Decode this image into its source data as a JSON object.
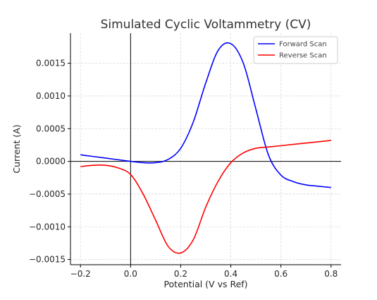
{
  "chart_data": {
    "type": "line",
    "title": "Simulated Cyclic Voltammetry (CV)",
    "xlabel": "Potential (V vs Ref)",
    "ylabel": "Current (A)",
    "xlim": [
      -0.24,
      0.84
    ],
    "ylim": [
      -0.00158,
      0.00196
    ],
    "xticks": [
      -0.2,
      0.0,
      0.2,
      0.4,
      0.6,
      0.8
    ],
    "xtick_labels": [
      "−0.2",
      "0.0",
      "0.2",
      "0.4",
      "0.6",
      "0.8"
    ],
    "yticks": [
      -0.0015,
      -0.001,
      -0.0005,
      0.0,
      0.0005,
      0.001,
      0.0015
    ],
    "ytick_labels": [
      "−0.0015",
      "−0.0010",
      "−0.0005",
      "0.0000",
      "0.0005",
      "0.0010",
      "0.0015"
    ],
    "grid": true,
    "legend_position": "top-right",
    "zero_lines": true,
    "series": [
      {
        "name": "Forward Scan",
        "color": "#0000ff",
        "x": [
          -0.2,
          -0.1,
          0.0,
          0.05,
          0.1,
          0.15,
          0.2,
          0.25,
          0.3,
          0.35,
          0.4,
          0.45,
          0.5,
          0.55,
          0.6,
          0.65,
          0.7,
          0.75,
          0.8
        ],
        "y": [
          0.0001,
          5e-05,
          0.0,
          -2e-05,
          -2e-05,
          3e-05,
          0.0002,
          0.0006,
          0.0012,
          0.0017,
          0.0018,
          0.0015,
          0.0008,
          0.0001,
          -0.00021,
          -0.00031,
          -0.00036,
          -0.00038,
          -0.0004
        ]
      },
      {
        "name": "Reverse Scan",
        "color": "#ff0000",
        "x": [
          -0.2,
          -0.15,
          -0.1,
          -0.05,
          0.0,
          0.05,
          0.1,
          0.15,
          0.2,
          0.25,
          0.3,
          0.35,
          0.4,
          0.45,
          0.5,
          0.55,
          0.6,
          0.7,
          0.8
        ],
        "y": [
          -8e-05,
          -6e-05,
          -6e-05,
          -0.0001,
          -0.0002,
          -0.0005,
          -0.0009,
          -0.0013,
          -0.0014,
          -0.0012,
          -0.0007,
          -0.0003,
          -2e-05,
          0.00013,
          0.0002,
          0.00022,
          0.00024,
          0.00028,
          0.00032
        ]
      }
    ]
  }
}
